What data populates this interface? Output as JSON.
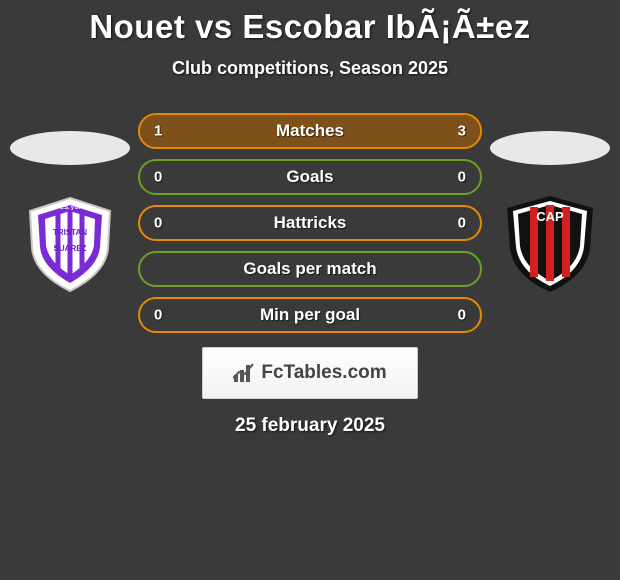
{
  "title": "Nouet vs Escobar IbÃ¡Ã±ez",
  "subtitle": "Club competitions, Season 2025",
  "date": "25 february 2025",
  "colors": {
    "row_orange": "#e68a00",
    "row_green": "#6aa028",
    "row_orange_fill": "#b86500",
    "row_green_fill": "#4f7a1c",
    "background": "#3a3a3a"
  },
  "rows": [
    {
      "label": "Matches",
      "left": "1",
      "right": "3",
      "color": "orange",
      "left_pct": 25,
      "right_pct": 75
    },
    {
      "label": "Goals",
      "left": "0",
      "right": "0",
      "color": "green",
      "left_pct": 0,
      "right_pct": 0
    },
    {
      "label": "Hattricks",
      "left": "0",
      "right": "0",
      "color": "orange",
      "left_pct": 0,
      "right_pct": 0
    },
    {
      "label": "Goals per match",
      "left": "",
      "right": "",
      "color": "green",
      "left_pct": 0,
      "right_pct": 0
    },
    {
      "label": "Min per goal",
      "left": "0",
      "right": "0",
      "color": "orange",
      "left_pct": 0,
      "right_pct": 0
    }
  ],
  "fctables_label": "FcTables.com",
  "left_team": {
    "name": "C.S. y D. Tristan Suarez",
    "colors": {
      "outer": "#ffffff",
      "mid": "#7a2bd6",
      "text": "#6b22c4"
    }
  },
  "right_team": {
    "name": "CA Patronato",
    "colors": {
      "outer": "#111111",
      "stripe": "#d21f1f",
      "ring": "#ffffff"
    }
  }
}
